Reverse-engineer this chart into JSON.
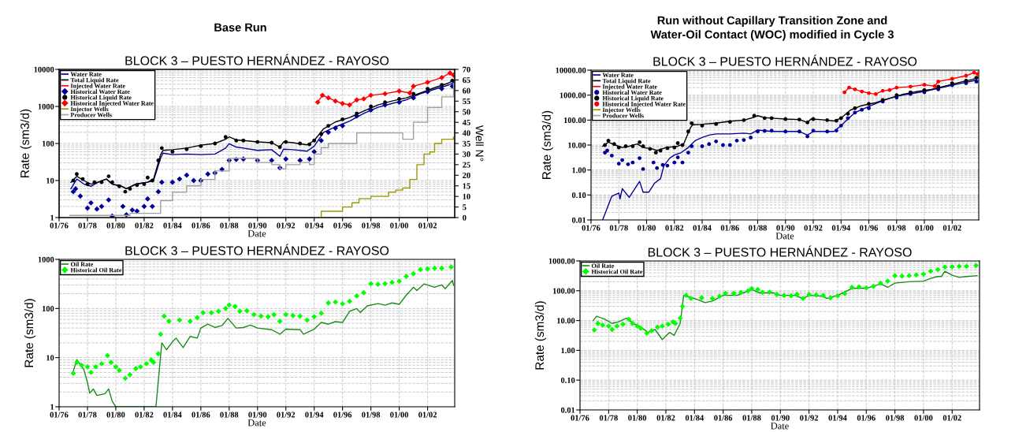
{
  "chart_data": [
    {
      "type": "line",
      "title": "BLOCK 3 – PUESTO HERNÁNDEZ - RAYOSO",
      "xlabel": "Date",
      "ylabel": "Rate (sm3/d)",
      "y2label": "Well N°",
      "annotations": [
        "Base Run"
      ],
      "log": "y",
      "grid": true,
      "legend": "top left",
      "xlim": [
        "1976-01",
        "2003-12"
      ],
      "xticks": [
        {
          "value": "1976-01",
          "label": "01/76"
        },
        {
          "value": "1978-01",
          "label": "01/78"
        },
        {
          "value": "1980-01",
          "label": "01/80"
        },
        {
          "value": "1982-01",
          "label": "01/82"
        },
        {
          "value": "1984-01",
          "label": "01/84"
        },
        {
          "value": "1986-01",
          "label": "01/86"
        },
        {
          "value": "1988-01",
          "label": "01/88"
        },
        {
          "value": "1990-01",
          "label": "01/90"
        },
        {
          "value": "1992-01",
          "label": "01/92"
        },
        {
          "value": "1994-01",
          "label": "01/94"
        },
        {
          "value": "1996-01",
          "label": "01/96"
        },
        {
          "value": "1998-01",
          "label": "01/98"
        },
        {
          "value": "2000-01",
          "label": "01/00"
        },
        {
          "value": "2002-01",
          "label": "01/02"
        }
      ],
      "ylim": [
        1,
        10000
      ],
      "yticks": [
        1,
        10,
        100,
        1000,
        10000
      ],
      "y2lim": [
        0,
        70
      ],
      "y2ticks": [
        0,
        5,
        10,
        15,
        20,
        25,
        30,
        35,
        40,
        45,
        50,
        55,
        60,
        65,
        70
      ],
      "series": [
        {
          "name": "Water Rate",
          "type": "line",
          "color": "#000099",
          "x": [
            "1976-11",
            "1977-04",
            "1977-10",
            "1978-04",
            "1978-10",
            "1979-05",
            "1979-10",
            "1980-06",
            "1980-10",
            "1981-06",
            "1982-04",
            "1982-09",
            "1983-03",
            "1983-05",
            "1984-01",
            "1985-01",
            "1986-01",
            "1987-01",
            "1987-10",
            "1988-01",
            "1988-07",
            "1989-01",
            "1990-01",
            "1991-01",
            "1991-08",
            "1991-11",
            "1992-07",
            "1993-07",
            "1994-01",
            "1994-09",
            "1995-07",
            "1996-07",
            "1997-07",
            "1998-07",
            "1999-07",
            "2000-07",
            "2001-07",
            "2002-07",
            "2003-07",
            "2003-11"
          ],
          "values": [
            6,
            11,
            8,
            7,
            9,
            11,
            8,
            7,
            6,
            8,
            9,
            10,
            40,
            55,
            50,
            52,
            50,
            52,
            75,
            98,
            80,
            75,
            65,
            68,
            45,
            70,
            68,
            62,
            85,
            200,
            280,
            400,
            650,
            950,
            1200,
            1500,
            2200,
            2900,
            3800,
            4400
          ]
        },
        {
          "name": "Total Liquid Rate",
          "type": "line",
          "color": "#000000",
          "x": [
            "1976-11",
            "1977-04",
            "1977-10",
            "1978-04",
            "1978-10",
            "1979-05",
            "1979-10",
            "1980-06",
            "1980-10",
            "1981-06",
            "1982-04",
            "1982-09",
            "1983-03",
            "1983-05",
            "1984-01",
            "1985-01",
            "1986-01",
            "1987-01",
            "1987-10",
            "1988-01",
            "1988-07",
            "1989-01",
            "1990-01",
            "1991-01",
            "1991-08",
            "1991-11",
            "1992-07",
            "1993-07",
            "1994-01",
            "1994-09",
            "1995-07",
            "1996-07",
            "1997-07",
            "1998-07",
            "1999-07",
            "2000-07",
            "2001-07",
            "2002-07",
            "2003-07",
            "2003-11"
          ],
          "values": [
            9,
            13,
            10,
            8,
            9,
            11,
            8,
            7,
            6,
            8,
            9,
            11,
            50,
            65,
            68,
            75,
            90,
            100,
            130,
            150,
            125,
            120,
            110,
            105,
            80,
            110,
            105,
            92,
            120,
            250,
            380,
            500,
            750,
            1100,
            1400,
            1700,
            2300,
            3200,
            4300,
            5000
          ]
        },
        {
          "name": "Injected Water Rate",
          "type": "line",
          "color": "#ff0000",
          "x": [
            "1994-04",
            "1994-08",
            "1995-01",
            "1995-07",
            "1996-01",
            "1996-07",
            "1997-01",
            "1997-07",
            "1998-01",
            "1999-01",
            "2000-01",
            "2000-10",
            "2001-01",
            "2002-01",
            "2003-01",
            "2003-08",
            "2003-11"
          ],
          "values": [
            1300,
            2000,
            1700,
            1400,
            1200,
            1100,
            1500,
            1600,
            2000,
            2200,
            2600,
            2300,
            3500,
            4500,
            6000,
            8000,
            7000
          ]
        },
        {
          "name": "Historical Water Rate",
          "type": "scatter",
          "marker": "diamond",
          "color": "#000099",
          "x": [
            "1977-01",
            "1977-03",
            "1977-07",
            "1978-01",
            "1978-04",
            "1978-09",
            "1979-01",
            "1979-07",
            "1979-10",
            "1980-07",
            "1980-10",
            "1981-03",
            "1981-07",
            "1982-01",
            "1982-04",
            "1982-08",
            "1983-01",
            "1983-04",
            "1984-01",
            "1984-07",
            "1985-01",
            "1985-07",
            "1986-01",
            "1986-07",
            "1987-01",
            "1987-07",
            "1988-01",
            "1988-07",
            "1989-01",
            "1990-01",
            "1991-01",
            "1991-08",
            "1992-01",
            "1993-01",
            "1993-09",
            "1994-01",
            "1994-07",
            "1995-01",
            "1995-07",
            "1996-01",
            "1997-01",
            "1998-01",
            "1999-01",
            "2000-01",
            "2001-01",
            "2002-01",
            "2003-01",
            "2003-10"
          ],
          "values": [
            5,
            6,
            3.8,
            1.8,
            2.5,
            1.7,
            2,
            3,
            1.1,
            2,
            1.2,
            1.6,
            1.5,
            2,
            3.2,
            2,
            5,
            9,
            9,
            11,
            14,
            10,
            10,
            15,
            16,
            20,
            35,
            37,
            38,
            35,
            35,
            22,
            38,
            35,
            38,
            60,
            120,
            200,
            260,
            300,
            550,
            800,
            1100,
            1300,
            1700,
            2500,
            3000,
            3500
          ]
        },
        {
          "name": "Historical Liquid Rate",
          "type": "scatter",
          "marker": "circle",
          "color": "#000000",
          "x": [
            "1977-01",
            "1977-04",
            "1977-09",
            "1978-01",
            "1978-07",
            "1979-01",
            "1979-07",
            "1979-10",
            "1980-04",
            "1980-09",
            "1981-01",
            "1981-07",
            "1982-01",
            "1982-04",
            "1982-08",
            "1983-01",
            "1983-04",
            "1984-01",
            "1985-01",
            "1986-01",
            "1987-01",
            "1987-10",
            "1988-07",
            "1989-01",
            "1990-01",
            "1991-01",
            "1991-08",
            "1992-01",
            "1993-01",
            "1993-09",
            "1994-01",
            "1994-07",
            "1995-01",
            "1996-01",
            "1997-01",
            "1998-01",
            "1999-01",
            "2000-01",
            "2001-01",
            "2002-01",
            "2003-01",
            "2003-10"
          ],
          "values": [
            10,
            15,
            11,
            8,
            9,
            9,
            13,
            9,
            7,
            5,
            6,
            7.5,
            8,
            12,
            10,
            35,
            75,
            60,
            70,
            85,
            100,
            150,
            120,
            120,
            110,
            105,
            80,
            110,
            100,
            95,
            120,
            180,
            300,
            450,
            650,
            1000,
            1300,
            1600,
            2200,
            3000,
            3800,
            5000
          ]
        },
        {
          "name": "Historical Injected Water Rate",
          "type": "scatter",
          "marker": "diamond",
          "color": "#ff0000",
          "x": [
            "1994-04",
            "1994-08",
            "1995-01",
            "1995-07",
            "1996-01",
            "1996-07",
            "1997-01",
            "1997-07",
            "1998-01",
            "1999-01",
            "2000-01",
            "2000-10",
            "2001-01",
            "2002-01",
            "2003-01",
            "2003-08",
            "2003-11"
          ],
          "values": [
            1300,
            2000,
            1700,
            1400,
            1200,
            1100,
            1500,
            1600,
            2000,
            2200,
            2600,
            2300,
            3500,
            4500,
            6000,
            8000,
            7000
          ]
        },
        {
          "name": "Injector Wells",
          "type": "step",
          "axis": "y2",
          "color": "#999900",
          "x": [
            "1994-01",
            "1994-07",
            "1995-10",
            "1996-01",
            "1996-09",
            "1997-03",
            "1997-10",
            "1998-01",
            "1998-10",
            "1999-04",
            "1999-10",
            "2000-04",
            "2000-10",
            "2001-04",
            "2001-10",
            "2002-03",
            "2002-07",
            "2003-01",
            "2003-11"
          ],
          "values": [
            0,
            3,
            3,
            5,
            7,
            9,
            9,
            10,
            10,
            12,
            13,
            14,
            18,
            25,
            30,
            31,
            35,
            37,
            38
          ]
        },
        {
          "name": "Producer Wells",
          "type": "step",
          "axis": "y2",
          "color": "#a0a0a0",
          "x": [
            "1976-10",
            "1981-01",
            "1983-01",
            "1983-03",
            "1984-01",
            "1985-01",
            "1986-01",
            "1987-01",
            "1988-01",
            "1989-01",
            "1990-01",
            "1991-01",
            "1991-08",
            "1992-01",
            "1993-01",
            "1993-09",
            "1994-01",
            "1994-07",
            "1995-01",
            "1996-01",
            "1997-01",
            "1998-01",
            "1999-01",
            "2000-01",
            "2000-04",
            "2001-01",
            "2002-01",
            "2003-01",
            "2003-11"
          ],
          "values": [
            1,
            2,
            2,
            8,
            12,
            15,
            18,
            22,
            28,
            28,
            26,
            25,
            23,
            25,
            26,
            25,
            30,
            33,
            35,
            35,
            40,
            40,
            40,
            40,
            37,
            45,
            52,
            57,
            63
          ]
        }
      ]
    },
    {
      "type": "line",
      "title": "BLOCK 3 – PUESTO HERNÁNDEZ - RAYOSO",
      "xlabel": "Date",
      "ylabel": "Rate (sm3/d)",
      "annotations": [
        "Run without Capillary Transition Zone and\nWater-Oil Contact (WOC) modified in Cycle 3"
      ],
      "log": "y",
      "grid": true,
      "legend": "top left",
      "xlim": [
        "1976-01",
        "2003-12"
      ],
      "xticks": [
        {
          "value": "1976-01",
          "label": "01/76"
        },
        {
          "value": "1978-01",
          "label": "01/78"
        },
        {
          "value": "1980-01",
          "label": "01/80"
        },
        {
          "value": "1982-01",
          "label": "01/82"
        },
        {
          "value": "1984-01",
          "label": "01/84"
        },
        {
          "value": "1986-01",
          "label": "01/86"
        },
        {
          "value": "1988-01",
          "label": "01/88"
        },
        {
          "value": "1990-01",
          "label": "01/90"
        },
        {
          "value": "1992-01",
          "label": "01/92"
        },
        {
          "value": "1994-01",
          "label": "01/94"
        },
        {
          "value": "1996-01",
          "label": "01/96"
        },
        {
          "value": "1998-01",
          "label": "01/98"
        },
        {
          "value": "2000-01",
          "label": "01/00"
        },
        {
          "value": "2002-01",
          "label": "01/02"
        }
      ],
      "ylim": [
        0.01,
        10000
      ],
      "yticks": [
        {
          "value": 0.01,
          "label": "0.01"
        },
        {
          "value": 0.1,
          "label": "0.10"
        },
        {
          "value": 1,
          "label": "1.00"
        },
        {
          "value": 10,
          "label": "10.00"
        },
        {
          "value": 100,
          "label": "100.00"
        },
        {
          "value": 1000,
          "label": "1000.00"
        },
        {
          "value": 10000,
          "label": "10000.00"
        }
      ],
      "series": [
        {
          "name": "Water Rate",
          "type": "line",
          "color": "#000099",
          "x": [
            "1976-11",
            "1977-07",
            "1978-01",
            "1978-02",
            "1978-04",
            "1978-10",
            "1979-07",
            "1979-10",
            "1980-03",
            "1980-08",
            "1981-01",
            "1981-04",
            "1981-09",
            "1982-01",
            "1982-07",
            "1983-01",
            "1983-07",
            "1984-01",
            "1984-07",
            "1985-01",
            "1986-01",
            "1987-01",
            "1987-07",
            "1988-01",
            "1989-01",
            "1990-01",
            "1991-01",
            "1991-08",
            "1992-01",
            "1993-01",
            "1993-07",
            "1994-01",
            "1995-01",
            "1996-01",
            "1997-01",
            "1998-01",
            "2000-01",
            "2002-01",
            "2003-10"
          ],
          "values": [
            0.01,
            0.09,
            0.12,
            0.07,
            0.18,
            0.08,
            0.35,
            0.13,
            0.13,
            0.3,
            0.45,
            1.5,
            3,
            4,
            5,
            8,
            15,
            20,
            25,
            28,
            28,
            30,
            28,
            40,
            35,
            35,
            35,
            25,
            35,
            35,
            35,
            60,
            200,
            350,
            600,
            900,
            1400,
            2500,
            4000
          ]
        },
        {
          "name": "Total Liquid Rate",
          "type": "line",
          "color": "#000000",
          "x": [
            "1976-11",
            "1977-04",
            "1977-10",
            "1978-04",
            "1978-10",
            "1979-05",
            "1979-10",
            "1980-06",
            "1980-10",
            "1981-06",
            "1982-04",
            "1982-09",
            "1983-03",
            "1983-05",
            "1984-01",
            "1985-01",
            "1986-01",
            "1987-01",
            "1987-10",
            "1988-01",
            "1988-07",
            "1989-01",
            "1990-01",
            "1991-01",
            "1991-08",
            "1991-11",
            "1992-07",
            "1993-07",
            "1994-01",
            "1994-09",
            "1995-07",
            "1996-07",
            "1997-07",
            "1998-07",
            "1999-07",
            "2000-07",
            "2001-07",
            "2002-07",
            "2003-07",
            "2003-11"
          ],
          "values": [
            9,
            13,
            10,
            8,
            9,
            11,
            8,
            7,
            6,
            8,
            9,
            11,
            50,
            65,
            68,
            75,
            90,
            100,
            130,
            150,
            125,
            120,
            110,
            105,
            80,
            110,
            105,
            92,
            120,
            250,
            380,
            500,
            750,
            1100,
            1400,
            1700,
            2300,
            3200,
            4300,
            5000
          ]
        },
        {
          "name": "Injected Water Rate",
          "type": "line",
          "color": "#ff0000",
          "x": [
            "1994-04",
            "1994-08",
            "1995-01",
            "1995-07",
            "1996-01",
            "1996-07",
            "1997-01",
            "1997-07",
            "1998-01",
            "1999-01",
            "2000-01",
            "2000-10",
            "2001-01",
            "2002-01",
            "2003-01",
            "2003-08",
            "2003-11"
          ],
          "values": [
            1300,
            2000,
            1700,
            1400,
            1200,
            1100,
            1500,
            1600,
            2000,
            2200,
            2600,
            2300,
            3500,
            4500,
            6000,
            8000,
            7000
          ]
        },
        {
          "name": "Historical Water Rate",
          "type": "scatter",
          "marker": "circle",
          "color": "#000099",
          "x": [
            "1977-01",
            "1977-03",
            "1977-07",
            "1978-01",
            "1978-04",
            "1978-09",
            "1979-01",
            "1979-07",
            "1979-10",
            "1980-07",
            "1980-10",
            "1981-03",
            "1981-07",
            "1982-01",
            "1982-04",
            "1982-08",
            "1983-01",
            "1983-04",
            "1984-01",
            "1984-07",
            "1985-01",
            "1985-07",
            "1986-01",
            "1986-07",
            "1987-01",
            "1987-07",
            "1988-01",
            "1988-07",
            "1989-01",
            "1990-01",
            "1991-01",
            "1991-08",
            "1992-01",
            "1993-01",
            "1993-09",
            "1994-01",
            "1994-07",
            "1995-01",
            "1995-07",
            "1996-01",
            "1997-01",
            "1998-01",
            "1999-01",
            "2000-01",
            "2001-01",
            "2002-01",
            "2003-01",
            "2003-10"
          ],
          "values": [
            5,
            6,
            3.8,
            1.8,
            2.5,
            1.7,
            2,
            3,
            1.1,
            2,
            1.2,
            1.6,
            1.5,
            2,
            3.2,
            2,
            5,
            9,
            9,
            11,
            14,
            10,
            10,
            15,
            16,
            20,
            35,
            37,
            38,
            35,
            35,
            22,
            38,
            35,
            38,
            60,
            120,
            200,
            260,
            300,
            550,
            800,
            1100,
            1300,
            1700,
            2500,
            3000,
            3500
          ]
        },
        {
          "name": "Historical Liquid Rate",
          "type": "scatter",
          "marker": "circle",
          "color": "#000000",
          "x": [
            "1977-01",
            "1977-04",
            "1977-09",
            "1978-01",
            "1978-07",
            "1979-01",
            "1979-07",
            "1979-10",
            "1980-04",
            "1980-09",
            "1981-01",
            "1981-07",
            "1982-01",
            "1982-04",
            "1982-08",
            "1983-01",
            "1983-04",
            "1984-01",
            "1985-01",
            "1986-01",
            "1987-01",
            "1987-10",
            "1988-07",
            "1989-01",
            "1990-01",
            "1991-01",
            "1991-08",
            "1992-01",
            "1993-01",
            "1993-09",
            "1994-01",
            "1994-07",
            "1995-01",
            "1996-01",
            "1997-01",
            "1998-01",
            "1999-01",
            "2000-01",
            "2001-01",
            "2002-01",
            "2003-01",
            "2003-10"
          ],
          "values": [
            10,
            15,
            11,
            8,
            9,
            9,
            13,
            9,
            7,
            5,
            6,
            7.5,
            8,
            12,
            10,
            35,
            75,
            60,
            70,
            85,
            100,
            150,
            120,
            120,
            110,
            105,
            80,
            110,
            100,
            95,
            120,
            180,
            300,
            450,
            650,
            1000,
            1300,
            1600,
            2200,
            3000,
            3800,
            5000
          ]
        },
        {
          "name": "Historical Injected Water Rate",
          "type": "scatter",
          "marker": "circle",
          "color": "#ff0000",
          "x": [
            "1994-04",
            "1994-08",
            "1995-01",
            "1995-07",
            "1996-01",
            "1996-07",
            "1997-01",
            "1997-07",
            "1998-01",
            "1999-01",
            "2000-01",
            "2000-10",
            "2001-01",
            "2002-01",
            "2003-01",
            "2003-08",
            "2003-11"
          ],
          "values": [
            1300,
            2000,
            1700,
            1400,
            1200,
            1100,
            1500,
            1600,
            2000,
            2200,
            2600,
            2300,
            3500,
            4500,
            6000,
            8000,
            7000
          ]
        },
        {
          "name": "Injector Wells",
          "color": "#999900"
        },
        {
          "name": "Producer Wells",
          "color": "#a0a0a0"
        }
      ]
    },
    {
      "type": "line",
      "title": "BLOCK 3 – PUESTO HERNÁNDEZ - RAYOSO",
      "xlabel": "Date",
      "ylabel": "Rate (sm3/d)",
      "log": "y",
      "grid": true,
      "legend": "top left",
      "xlim": [
        "1976-01",
        "2003-12"
      ],
      "xticks": [
        {
          "value": "1976-01",
          "label": "01/76"
        },
        {
          "value": "1978-01",
          "label": "01/78"
        },
        {
          "value": "1980-01",
          "label": "01/80"
        },
        {
          "value": "1982-01",
          "label": "01/82"
        },
        {
          "value": "1984-01",
          "label": "01/84"
        },
        {
          "value": "1986-01",
          "label": "01/86"
        },
        {
          "value": "1988-01",
          "label": "01/88"
        },
        {
          "value": "1990-01",
          "label": "01/90"
        },
        {
          "value": "1992-01",
          "label": "01/92"
        },
        {
          "value": "1994-01",
          "label": "01/94"
        },
        {
          "value": "1996-01",
          "label": "01/96"
        },
        {
          "value": "1998-01",
          "label": "01/98"
        },
        {
          "value": "2000-01",
          "label": "01/00"
        },
        {
          "value": "2002-01",
          "label": "01/02"
        }
      ],
      "ylim": [
        1,
        1000
      ],
      "yticks": [
        1,
        10,
        100,
        1000
      ],
      "series": [
        {
          "name": "Oil Rate",
          "type": "line",
          "color": "#1a8c1a",
          "x": [
            "1977-01",
            "1977-04",
            "1977-10",
            "1978-01",
            "1978-03",
            "1978-06",
            "1978-09",
            "1979-04",
            "1979-07",
            "1979-10",
            "1980-01",
            "1982-11",
            "1983-04",
            "1983-08",
            "1984-01",
            "1984-04",
            "1984-10",
            "1985-04",
            "1985-10",
            "1986-01",
            "1986-07",
            "1987-01",
            "1987-07",
            "1987-12",
            "1988-07",
            "1989-01",
            "1989-07",
            "1990-01",
            "1991-01",
            "1991-08",
            "1992-01",
            "1993-01",
            "1993-04",
            "1994-01",
            "1994-07",
            "1995-01",
            "1995-07",
            "1996-01",
            "1996-07",
            "1997-01",
            "1997-04",
            "1997-10",
            "1998-07",
            "1999-01",
            "1999-07",
            "2000-01",
            "2000-07",
            "2001-01",
            "2001-04",
            "2001-10",
            "2002-07",
            "2003-01",
            "2003-04",
            "2003-10",
            "2003-11"
          ],
          "values": [
            5.3,
            9.1,
            5.7,
            3.1,
            1.9,
            2.3,
            1.7,
            1.85,
            2.3,
            1.3,
            1,
            1,
            20,
            14.5,
            21,
            25,
            16,
            27,
            25,
            40,
            48,
            41,
            45,
            63,
            40,
            41,
            46,
            40,
            37,
            30,
            38,
            37,
            30,
            38,
            52,
            48,
            54,
            52,
            88,
            100,
            83,
            113,
            126,
            117,
            130,
            122,
            186,
            271,
            233,
            316,
            271,
            303,
            253,
            372,
            296
          ]
        },
        {
          "name": "Historical Oil Rate",
          "type": "scatter",
          "marker": "diamond",
          "color": "#00ff00",
          "x": [
            "1977-01",
            "1977-04",
            "1977-08",
            "1978-01",
            "1978-04",
            "1978-08",
            "1979-01",
            "1979-06",
            "1979-09",
            "1980-01",
            "1980-04",
            "1980-09",
            "1981-01",
            "1981-06",
            "1981-10",
            "1982-03",
            "1982-07",
            "1982-09",
            "1983-01",
            "1983-03",
            "1983-06",
            "1983-10",
            "1984-07",
            "1985-04",
            "1985-10",
            "1986-03",
            "1986-10",
            "1987-04",
            "1987-10",
            "1988-01",
            "1988-06",
            "1988-10",
            "1989-04",
            "1989-10",
            "1990-04",
            "1990-10",
            "1991-03",
            "1991-08",
            "1992-01",
            "1992-07",
            "1993-01",
            "1993-07",
            "1994-01",
            "1994-07",
            "1995-01",
            "1995-07",
            "1996-01",
            "1996-07",
            "1997-01",
            "1997-07",
            "1998-01",
            "1998-07",
            "1999-01",
            "1999-07",
            "2000-01",
            "2000-07",
            "2001-01",
            "2001-07",
            "2002-01",
            "2002-07",
            "2003-01",
            "2003-09"
          ],
          "values": [
            4.8,
            8,
            7,
            6.5,
            5,
            6.5,
            7.5,
            11,
            8,
            6.5,
            5.5,
            3.8,
            4.5,
            6,
            6.5,
            7.5,
            9,
            8,
            12,
            30,
            70,
            55,
            58,
            55,
            65,
            82,
            82,
            88,
            100,
            118,
            110,
            88,
            90,
            75,
            70,
            68,
            75,
            55,
            75,
            72,
            70,
            58,
            68,
            80,
            130,
            135,
            125,
            140,
            180,
            210,
            320,
            310,
            320,
            340,
            360,
            450,
            510,
            620,
            640,
            660,
            660,
            700
          ]
        }
      ]
    },
    {
      "type": "line",
      "title": "BLOCK 3 – PUESTO HERNÁNDEZ - RAYOSO",
      "xlabel": "Date",
      "ylabel": "Rate (sm3/d)",
      "log": "y",
      "grid": true,
      "legend": "top left",
      "xlim": [
        "1976-01",
        "2003-12"
      ],
      "xticks": [
        {
          "value": "1976-01",
          "label": "01/76"
        },
        {
          "value": "1978-01",
          "label": "01/78"
        },
        {
          "value": "1980-01",
          "label": "01/80"
        },
        {
          "value": "1982-01",
          "label": "01/82"
        },
        {
          "value": "1984-01",
          "label": "01/84"
        },
        {
          "value": "1986-01",
          "label": "01/86"
        },
        {
          "value": "1988-01",
          "label": "01/88"
        },
        {
          "value": "1990-01",
          "label": "01/90"
        },
        {
          "value": "1992-01",
          "label": "01/92"
        },
        {
          "value": "1994-01",
          "label": "01/94"
        },
        {
          "value": "1996-01",
          "label": "01/96"
        },
        {
          "value": "1998-01",
          "label": "01/98"
        },
        {
          "value": "2000-01",
          "label": "01/00"
        },
        {
          "value": "2002-01",
          "label": "01/02"
        }
      ],
      "ylim": [
        0.01,
        1000
      ],
      "yticks": [
        {
          "value": 0.01,
          "label": "0.01"
        },
        {
          "value": 0.1,
          "label": "0.10"
        },
        {
          "value": 1,
          "label": "1.00"
        },
        {
          "value": 10,
          "label": "10.00"
        },
        {
          "value": 100,
          "label": "100.00"
        },
        {
          "value": 1000,
          "label": "1000.00"
        }
      ],
      "series": [
        {
          "name": "Oil Rate",
          "type": "line",
          "color": "#1a8c1a",
          "x": [
            "1976-12",
            "1977-03",
            "1977-10",
            "1978-04",
            "1978-09",
            "1979-04",
            "1979-10",
            "1980-04",
            "1980-10",
            "1981-04",
            "1981-10",
            "1982-04",
            "1982-08",
            "1983-01",
            "1983-04",
            "1984-01",
            "1984-10",
            "1985-04",
            "1986-01",
            "1987-01",
            "1988-01",
            "1988-07",
            "1989-07",
            "1990-01",
            "1991-01",
            "1991-08",
            "1992-01",
            "1993-01",
            "1993-04",
            "1994-01",
            "1995-01",
            "1996-01",
            "1997-01",
            "1997-07",
            "1998-01",
            "1999-01",
            "2000-01",
            "2000-07",
            "2001-01",
            "2001-04",
            "2001-07",
            "2002-01",
            "2002-07",
            "2003-01",
            "2003-10"
          ],
          "values": [
            10,
            14,
            11,
            8,
            9,
            12,
            8,
            6,
            4,
            5,
            2.3,
            4,
            3.2,
            8,
            70,
            55,
            40,
            45,
            70,
            70,
            110,
            85,
            85,
            70,
            70,
            55,
            70,
            65,
            55,
            70,
            120,
            120,
            170,
            130,
            180,
            200,
            210,
            260,
            300,
            300,
            450,
            330,
            280,
            300,
            320
          ]
        },
        {
          "name": "Historical Oil Rate",
          "type": "scatter",
          "marker": "diamond",
          "color": "#00ff00",
          "x": [
            "1977-01",
            "1977-04",
            "1977-08",
            "1978-01",
            "1978-04",
            "1978-08",
            "1979-01",
            "1979-06",
            "1979-09",
            "1980-01",
            "1980-04",
            "1980-09",
            "1981-01",
            "1981-06",
            "1981-10",
            "1982-03",
            "1982-07",
            "1982-09",
            "1983-01",
            "1983-03",
            "1983-06",
            "1983-10",
            "1984-07",
            "1985-04",
            "1985-10",
            "1986-03",
            "1986-10",
            "1987-04",
            "1987-10",
            "1988-01",
            "1988-06",
            "1988-10",
            "1989-04",
            "1989-10",
            "1990-04",
            "1990-10",
            "1991-03",
            "1991-08",
            "1992-01",
            "1992-07",
            "1993-01",
            "1993-07",
            "1994-01",
            "1994-07",
            "1995-01",
            "1995-07",
            "1996-01",
            "1996-07",
            "1997-01",
            "1997-07",
            "1998-01",
            "1998-07",
            "1999-01",
            "1999-07",
            "2000-01",
            "2000-07",
            "2001-01",
            "2001-07",
            "2002-01",
            "2002-07",
            "2003-01",
            "2003-09"
          ],
          "values": [
            4.8,
            8,
            7,
            6.5,
            5,
            6.5,
            7.5,
            11,
            8,
            6.5,
            5.5,
            3.8,
            4.5,
            6,
            6.5,
            7.5,
            9,
            8,
            12,
            30,
            70,
            55,
            58,
            55,
            65,
            82,
            82,
            88,
            100,
            118,
            110,
            88,
            90,
            75,
            70,
            68,
            75,
            55,
            75,
            72,
            70,
            58,
            68,
            80,
            130,
            135,
            125,
            140,
            180,
            210,
            320,
            310,
            320,
            340,
            360,
            450,
            510,
            620,
            640,
            660,
            660,
            700
          ]
        }
      ]
    }
  ]
}
